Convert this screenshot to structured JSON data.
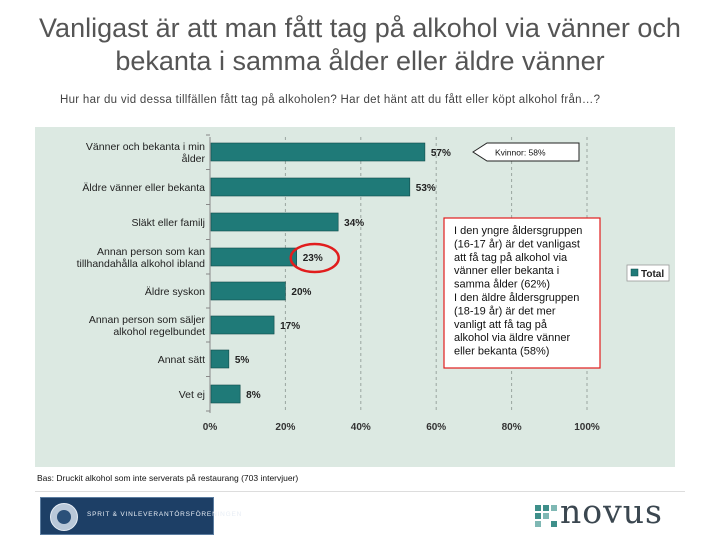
{
  "page": {
    "title": "Vanligast är att man fått tag på alkohol via vänner och bekanta i samma ålder eller äldre vänner",
    "subtitle": "Hur har du vid dessa tillfällen fått tag på alkoholen? Har det hänt att du fått eller köpt alkohol från…?",
    "base_note": "Bas: Druckit alkohol som inte serverats på restaurang (703 intervjuer)",
    "logo_left_text": "SPRIT & VINLEVERANTÖRSFÖRENINGEN",
    "logo_right_text": "novus"
  },
  "chart_data": {
    "type": "bar",
    "orientation": "horizontal",
    "categories": [
      "Vänner och bekanta i min ålder",
      "Äldre vänner eller bekanta",
      "Släkt eller familj",
      "Annan person som kan tillhandahålla alkohol ibland",
      "Äldre syskon",
      "Annan person som säljer alkohol regelbundet",
      "Annat sätt",
      "Vet ej"
    ],
    "series": [
      {
        "name": "Total",
        "values": [
          57,
          53,
          34,
          23,
          20,
          17,
          5,
          8
        ],
        "color": "#1f7a78"
      }
    ],
    "value_labels": [
      "57%",
      "53%",
      "34%",
      "23%",
      "20%",
      "17%",
      "5%",
      "8%"
    ],
    "xlim": [
      0,
      100
    ],
    "x_ticks": [
      "0%",
      "20%",
      "40%",
      "60%",
      "80%",
      "100%"
    ],
    "grid": "vertical dashed",
    "legend": "right",
    "highlighted_category": "Annan person som kan tillhandahålla alkohol ibland",
    "callout_kvinnor": "Kvinnor: 58%",
    "annotation": "I den yngre åldersgruppen (16-17 år) är det vanligast att få tag på alkohol via vänner eller bekanta i samma ålder (62%) I den äldre åldersgruppen (18-19 år) är det mer vanligt att få tag på alkohol via äldre vänner eller bekanta (58%)",
    "colors": {
      "bar": "#1f7a78",
      "plot_background": "#dce9e2",
      "highlight_circle": "#e11d1d",
      "annotation_border": "#e11d1d"
    }
  }
}
